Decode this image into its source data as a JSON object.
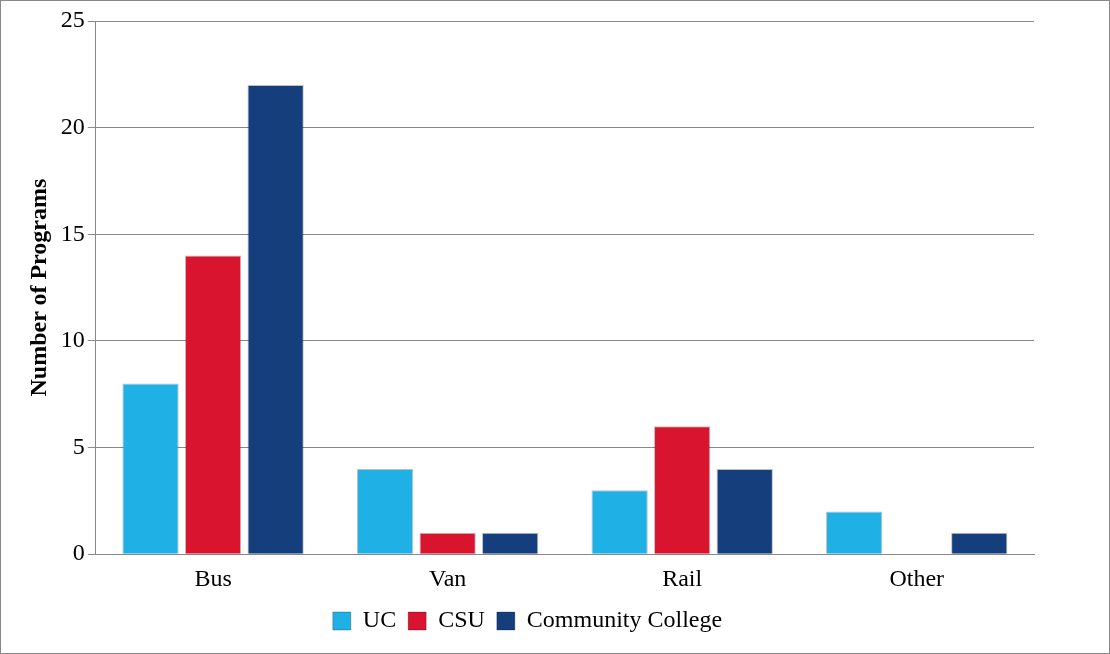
{
  "chart_data": {
    "type": "bar",
    "ylabel": "Number of Programs",
    "categories": [
      "Bus",
      "Van",
      "Rail",
      "Other"
    ],
    "series": [
      {
        "name": "UC",
        "color": "#1fb1e6",
        "values": [
          8,
          4,
          3,
          2
        ]
      },
      {
        "name": "CSU",
        "color": "#d8142f",
        "values": [
          14,
          1,
          6,
          0
        ]
      },
      {
        "name": "Community College",
        "color": "#143f7c",
        "values": [
          22,
          1,
          4,
          1
        ]
      }
    ],
    "ylim": [
      0,
      25
    ],
    "yticks": [
      0,
      5,
      10,
      15,
      20,
      25
    ],
    "grid": "y",
    "legend": "bottom"
  }
}
